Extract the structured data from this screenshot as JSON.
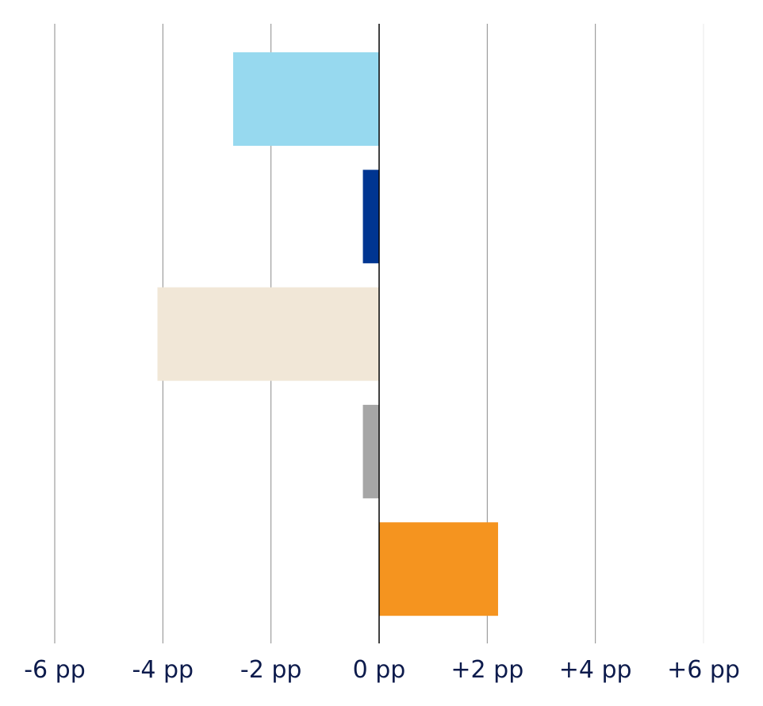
{
  "chart_data": {
    "type": "bar",
    "orientation": "horizontal",
    "title": "",
    "xlabel": "",
    "ylabel": "",
    "xlim": [
      -6,
      6
    ],
    "grid": true,
    "legend": "none",
    "x_ticks": [
      {
        "value": -6,
        "label": "-6 pp"
      },
      {
        "value": -4,
        "label": "-4 pp"
      },
      {
        "value": -2,
        "label": "-2 pp"
      },
      {
        "value": 0,
        "label": "0 pp"
      },
      {
        "value": 2,
        "label": "+2 pp"
      },
      {
        "value": 4,
        "label": "+4 pp"
      },
      {
        "value": 6,
        "label": "+6 pp"
      }
    ],
    "bars": [
      {
        "value": -2.7,
        "color": "#97d9ef"
      },
      {
        "value": -0.3,
        "color": "#003591"
      },
      {
        "value": -4.1,
        "color": "#f1e7d7"
      },
      {
        "value": -0.3,
        "color": "#a6a6a6"
      },
      {
        "value": 2.2,
        "color": "#f5941f"
      }
    ]
  }
}
